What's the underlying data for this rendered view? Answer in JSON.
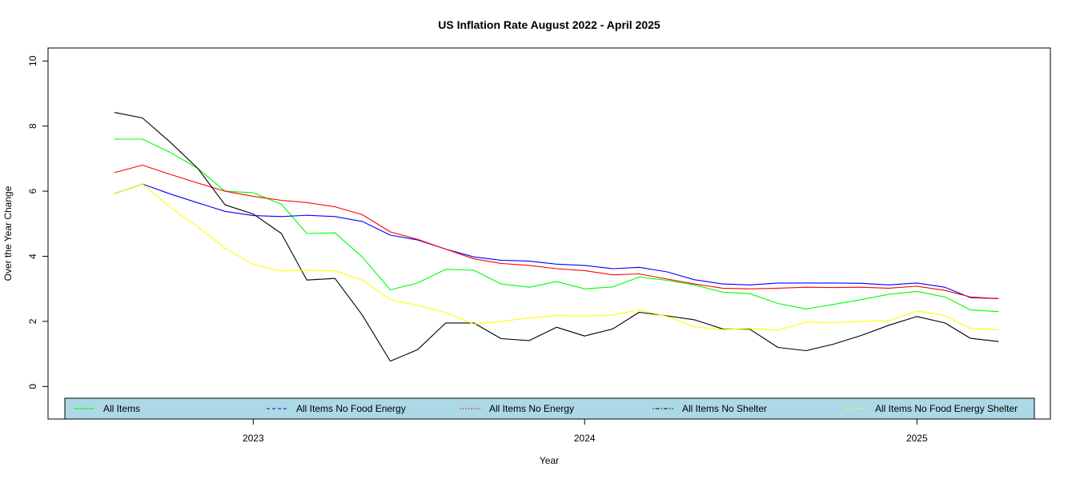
{
  "chart_data": {
    "type": "line",
    "title": "US Inflation Rate August 2022 - April 2025",
    "xlabel": "Year",
    "ylabel": "Over the Year Change",
    "xlim": [
      "2022-05-20",
      "2025-05-28"
    ],
    "ylim": [
      -1,
      10.4
    ],
    "x_ticks": [
      {
        "date": "2023-01-01",
        "label": "2023"
      },
      {
        "date": "2024-01-01",
        "label": "2024"
      },
      {
        "date": "2025-01-01",
        "label": "2025"
      }
    ],
    "y_ticks": [
      0,
      2,
      4,
      6,
      8,
      10
    ],
    "grid": false,
    "legend_position": "bottom-horizontal",
    "legend_background": "#add8e6",
    "x": [
      "2022-08",
      "2022-09",
      "2022-10",
      "2022-11",
      "2022-12",
      "2023-01",
      "2023-02",
      "2023-03",
      "2023-04",
      "2023-05",
      "2023-06",
      "2023-07",
      "2023-08",
      "2023-09",
      "2023-10",
      "2023-11",
      "2023-12",
      "2024-01",
      "2024-02",
      "2024-03",
      "2024-04",
      "2024-05",
      "2024-06",
      "2024-07",
      "2024-08",
      "2024-09",
      "2024-10",
      "2024-11",
      "2024-12",
      "2025-01",
      "2025-02",
      "2025-03",
      "2025-04"
    ],
    "series": [
      {
        "name": "All Items",
        "color": "#00ff00",
        "linetype": "solid",
        "values": [
          7.6,
          7.6,
          7.2,
          6.7,
          6.0,
          5.95,
          5.6,
          4.7,
          4.72,
          3.98,
          2.97,
          3.18,
          3.6,
          3.57,
          3.15,
          3.05,
          3.22,
          3.0,
          3.06,
          3.36,
          3.26,
          3.12,
          2.9,
          2.85,
          2.55,
          2.38,
          2.52,
          2.67,
          2.83,
          2.92,
          2.75,
          2.35,
          2.3
        ]
      },
      {
        "name": "All Items No Food Energy",
        "color": "#0000ff",
        "linetype": "dashed",
        "values": [
          5.92,
          6.22,
          5.92,
          5.64,
          5.38,
          5.25,
          5.22,
          5.26,
          5.22,
          5.07,
          4.65,
          4.5,
          4.22,
          3.98,
          3.88,
          3.85,
          3.76,
          3.72,
          3.62,
          3.66,
          3.52,
          3.28,
          3.15,
          3.12,
          3.18,
          3.18,
          3.18,
          3.17,
          3.12,
          3.18,
          3.05,
          2.73,
          2.7
        ]
      },
      {
        "name": "All Items No Energy",
        "color": "#ff0000",
        "linetype": "dotted",
        "values": [
          6.57,
          6.8,
          6.52,
          6.25,
          6.0,
          5.84,
          5.72,
          5.65,
          5.52,
          5.28,
          4.75,
          4.52,
          4.22,
          3.92,
          3.78,
          3.72,
          3.62,
          3.56,
          3.43,
          3.46,
          3.3,
          3.15,
          3.02,
          3.0,
          3.02,
          3.05,
          3.04,
          3.05,
          3.02,
          3.08,
          2.95,
          2.75,
          2.7
        ]
      },
      {
        "name": "All Items No Shelter",
        "color": "#000000",
        "linetype": "dotdash",
        "values": [
          8.42,
          8.25,
          7.52,
          6.7,
          5.58,
          5.3,
          4.7,
          3.27,
          3.32,
          2.2,
          0.78,
          1.13,
          1.95,
          1.95,
          1.47,
          1.41,
          1.82,
          1.55,
          1.77,
          2.28,
          2.17,
          2.05,
          1.77,
          1.76,
          1.2,
          1.1,
          1.3,
          1.57,
          1.88,
          2.15,
          1.95,
          1.48,
          1.38
        ]
      },
      {
        "name": "All Items No Food Energy Shelter",
        "color": "#ffff00",
        "linetype": "dashed",
        "values": [
          5.92,
          6.22,
          5.52,
          4.9,
          4.25,
          3.75,
          3.55,
          3.57,
          3.55,
          3.27,
          2.67,
          2.49,
          2.27,
          1.92,
          2.0,
          2.1,
          2.18,
          2.16,
          2.2,
          2.35,
          2.15,
          1.83,
          1.75,
          1.78,
          1.73,
          1.98,
          1.96,
          2.0,
          2.02,
          2.32,
          2.18,
          1.78,
          1.75
        ]
      }
    ]
  }
}
